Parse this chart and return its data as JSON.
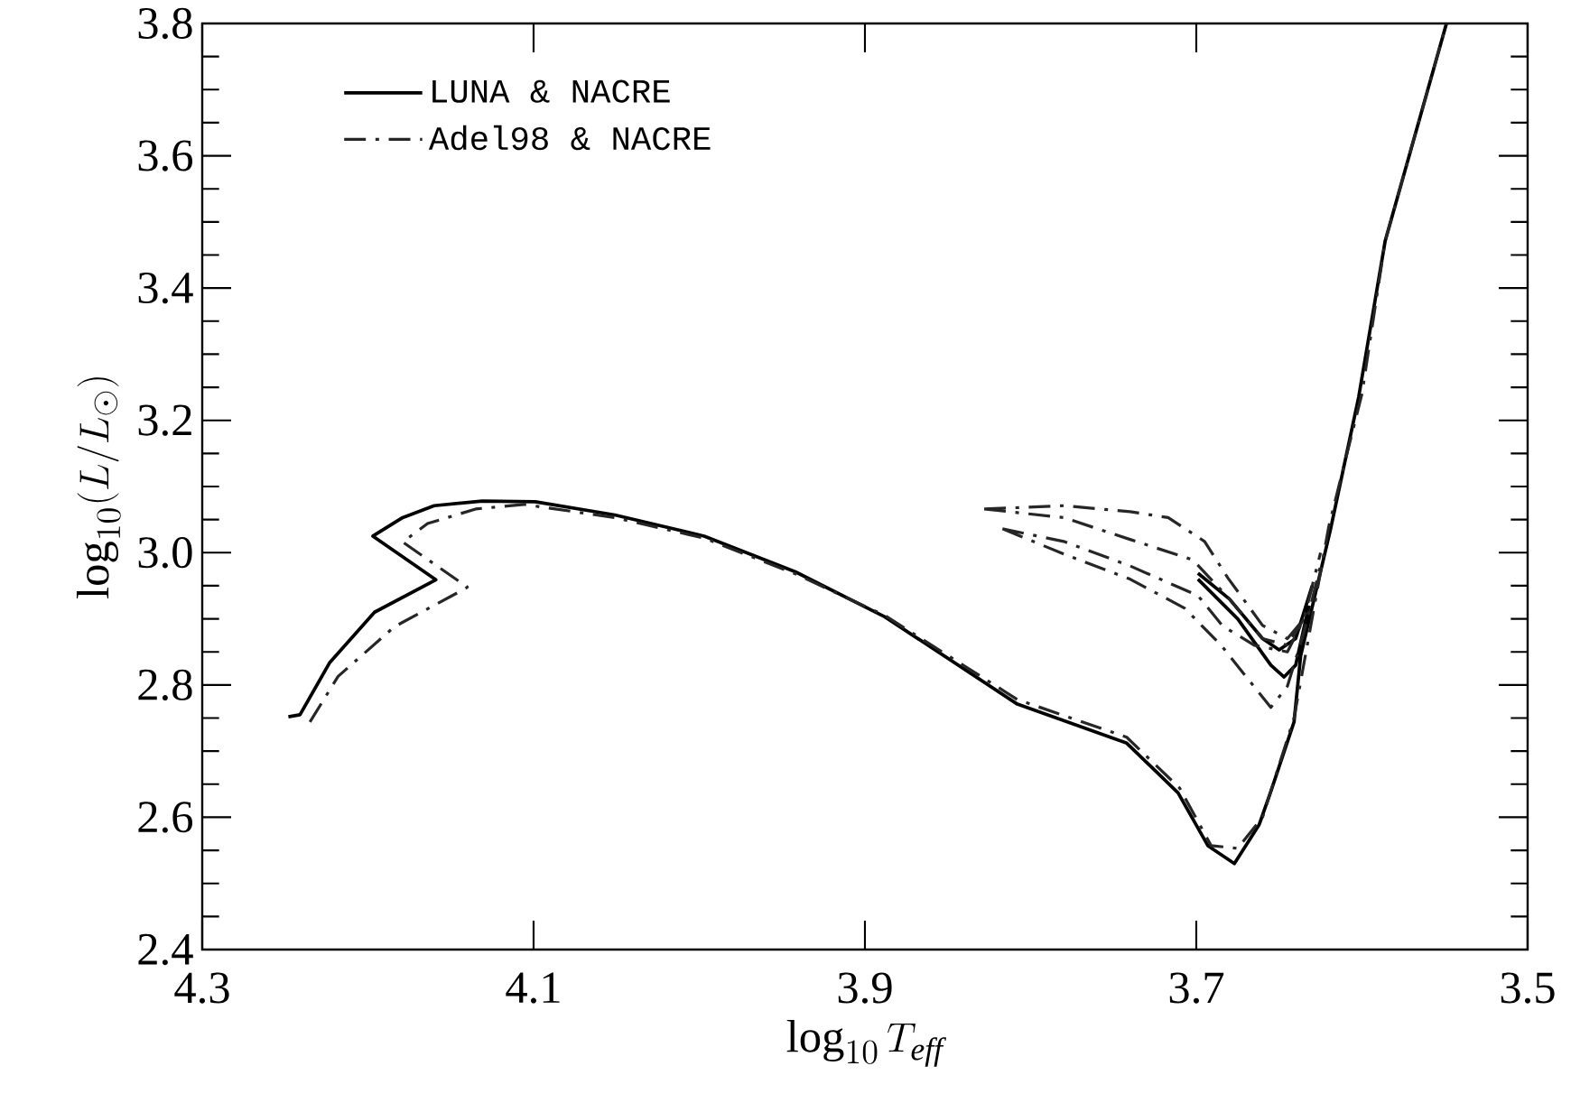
{
  "chart_data": {
    "type": "line",
    "xlabel": "\\log_{10}T_{\\mathit{eff}}",
    "ylabel": "\\log_{10}(L/L_{\\odot})",
    "xlim": [
      4.3,
      3.5
    ],
    "ylim": [
      2.4,
      3.8
    ],
    "xticks": [
      {
        "value": 4.3,
        "label": "4.3"
      },
      {
        "value": 4.1,
        "label": "4.1"
      },
      {
        "value": 3.9,
        "label": "3.9"
      },
      {
        "value": 3.7,
        "label": "3.7"
      },
      {
        "value": 3.5,
        "label": "3.5"
      }
    ],
    "yticks": [
      {
        "value": 2.4,
        "label": "2.4"
      },
      {
        "value": 2.6,
        "label": "2.6"
      },
      {
        "value": 2.8,
        "label": "2.8"
      },
      {
        "value": 3.0,
        "label": "3.0"
      },
      {
        "value": 3.2,
        "label": "3.2"
      },
      {
        "value": 3.4,
        "label": "3.4"
      },
      {
        "value": 3.6,
        "label": "3.6"
      },
      {
        "value": 3.8,
        "label": "3.8"
      }
    ],
    "legend": "top left",
    "grid": false,
    "series": [
      {
        "name": "LUNA & NACRE",
        "color": "#000000",
        "line_style": "solid",
        "x": [
          4.248,
          4.241,
          4.223,
          4.196,
          4.159,
          4.197,
          4.179,
          4.16,
          4.131,
          4.099,
          4.051,
          3.997,
          3.942,
          3.888,
          3.808,
          3.742,
          3.711,
          3.693,
          3.677,
          3.662,
          3.655,
          3.641,
          3.637,
          3.619,
          3.602,
          3.586,
          3.549,
          null,
          3.699,
          3.68,
          3.66,
          3.65,
          3.64,
          3.63,
          null,
          3.699,
          3.675,
          3.655,
          3.647,
          3.64,
          3.632
        ],
        "values": [
          2.752,
          2.755,
          2.834,
          2.91,
          2.959,
          3.025,
          3.053,
          3.071,
          3.078,
          3.077,
          3.057,
          3.025,
          2.971,
          2.903,
          2.771,
          2.712,
          2.637,
          2.557,
          2.53,
          2.589,
          2.639,
          2.744,
          2.844,
          3.035,
          3.235,
          3.471,
          3.8,
          null,
          2.969,
          2.93,
          2.87,
          2.853,
          2.87,
          2.95,
          null,
          2.96,
          2.9,
          2.83,
          2.812,
          2.83,
          2.92
        ]
      },
      {
        "name": "Adel98 & NACRE",
        "color": "#262626",
        "line_style": "dashdot",
        "x": [
          4.235,
          4.218,
          4.184,
          4.141,
          4.14,
          4.179,
          4.164,
          4.135,
          4.106,
          4.051,
          3.997,
          3.942,
          3.888,
          3.808,
          3.742,
          3.71,
          3.691,
          3.675,
          3.66,
          3.641,
          3.62,
          3.6,
          3.586,
          3.549,
          null,
          3.828,
          3.78,
          3.74,
          3.717,
          3.695,
          3.681,
          3.66,
          3.645,
          3.635,
          3.625,
          null,
          3.828,
          3.78,
          3.74,
          3.702,
          3.68,
          3.66,
          3.645,
          3.635,
          null,
          3.817,
          3.78,
          3.74,
          3.699,
          3.684,
          3.665,
          3.645,
          3.635,
          null,
          3.817,
          3.78,
          3.74,
          3.707,
          3.685,
          3.671,
          3.655,
          3.645,
          3.635,
          3.625
        ],
        "values": [
          2.744,
          2.813,
          2.888,
          2.946,
          2.948,
          3.016,
          3.044,
          3.066,
          3.073,
          3.053,
          3.022,
          2.968,
          2.905,
          2.778,
          2.721,
          2.644,
          2.557,
          2.553,
          2.6,
          2.75,
          3.04,
          3.24,
          3.471,
          3.8,
          null,
          3.066,
          3.071,
          3.062,
          3.053,
          3.017,
          2.962,
          2.89,
          2.87,
          2.9,
          3.0,
          null,
          3.066,
          3.053,
          3.02,
          2.989,
          2.93,
          2.87,
          2.86,
          2.9,
          null,
          3.036,
          3.017,
          2.98,
          2.935,
          2.889,
          2.86,
          2.85,
          2.9,
          null,
          3.036,
          2.998,
          2.96,
          2.916,
          2.86,
          2.816,
          2.766,
          2.798,
          2.88,
          2.98
        ]
      }
    ]
  }
}
